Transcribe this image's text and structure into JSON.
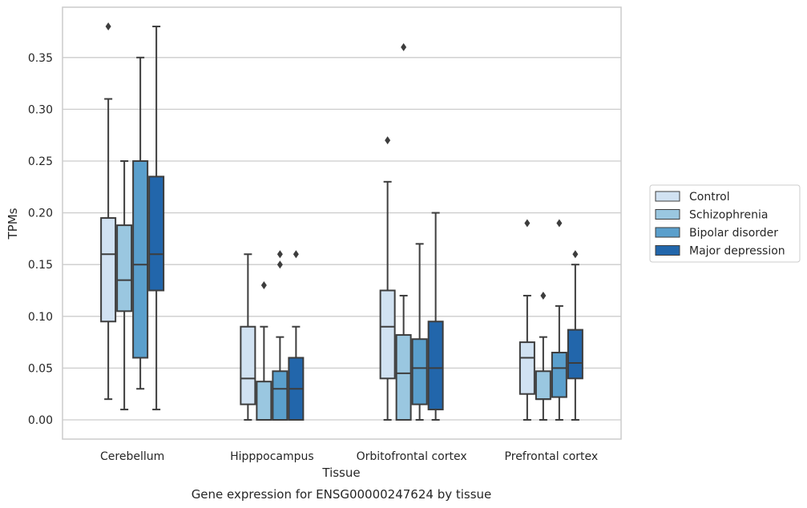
{
  "chart_data": {
    "type": "box",
    "xlabel": "Tissue",
    "ylabel": "TPMs",
    "caption": "Gene expression for ENSG00000247624 by tissue",
    "ylim": [
      -0.018,
      0.398
    ],
    "yticks": [
      "0.00",
      "0.05",
      "0.10",
      "0.15",
      "0.20",
      "0.25",
      "0.30",
      "0.35"
    ],
    "grid": true,
    "legend_position": "right",
    "categories": [
      "Cerebellum",
      "Hipppocampus",
      "Orbitofrontal cortex",
      "Prefrontal cortex"
    ],
    "series": [
      {
        "name": "Control",
        "color": "#d1e2f2",
        "boxes": [
          {
            "min": 0.02,
            "q1": 0.095,
            "median": 0.16,
            "q3": 0.195,
            "max": 0.31,
            "outliers": [
              0.38
            ]
          },
          {
            "min": 0.0,
            "q1": 0.015,
            "median": 0.04,
            "q3": 0.09,
            "max": 0.16,
            "outliers": []
          },
          {
            "min": 0.0,
            "q1": 0.04,
            "median": 0.09,
            "q3": 0.125,
            "max": 0.23,
            "outliers": [
              0.27
            ]
          },
          {
            "min": 0.0,
            "q1": 0.025,
            "median": 0.06,
            "q3": 0.075,
            "max": 0.12,
            "outliers": [
              0.19
            ]
          }
        ]
      },
      {
        "name": "Schizophrenia",
        "color": "#9ac7e0",
        "boxes": [
          {
            "min": 0.01,
            "q1": 0.105,
            "median": 0.135,
            "q3": 0.188,
            "max": 0.25,
            "outliers": []
          },
          {
            "min": 0.0,
            "q1": 0.0,
            "median": 0.0,
            "q3": 0.037,
            "max": 0.09,
            "outliers": [
              0.13
            ]
          },
          {
            "min": 0.0,
            "q1": 0.0,
            "median": 0.045,
            "q3": 0.082,
            "max": 0.12,
            "outliers": [
              0.36
            ]
          },
          {
            "min": 0.0,
            "q1": 0.02,
            "median": 0.02,
            "q3": 0.047,
            "max": 0.08,
            "outliers": [
              0.12
            ]
          }
        ]
      },
      {
        "name": "Bipolar disorder",
        "color": "#5a9fcc",
        "boxes": [
          {
            "min": 0.03,
            "q1": 0.06,
            "median": 0.15,
            "q3": 0.25,
            "max": 0.35,
            "outliers": []
          },
          {
            "min": 0.0,
            "q1": 0.0,
            "median": 0.03,
            "q3": 0.047,
            "max": 0.08,
            "outliers": [
              0.15,
              0.16
            ]
          },
          {
            "min": 0.0,
            "q1": 0.015,
            "median": 0.05,
            "q3": 0.078,
            "max": 0.17,
            "outliers": []
          },
          {
            "min": 0.0,
            "q1": 0.022,
            "median": 0.05,
            "q3": 0.065,
            "max": 0.11,
            "outliers": [
              0.19
            ]
          }
        ]
      },
      {
        "name": "Major depression",
        "color": "#2266ab",
        "boxes": [
          {
            "min": 0.01,
            "q1": 0.125,
            "median": 0.16,
            "q3": 0.235,
            "max": 0.38,
            "outliers": []
          },
          {
            "min": 0.0,
            "q1": 0.0,
            "median": 0.03,
            "q3": 0.06,
            "max": 0.09,
            "outliers": [
              0.16
            ]
          },
          {
            "min": 0.0,
            "q1": 0.01,
            "median": 0.05,
            "q3": 0.095,
            "max": 0.2,
            "outliers": []
          },
          {
            "min": 0.0,
            "q1": 0.04,
            "median": 0.055,
            "q3": 0.087,
            "max": 0.15,
            "outliers": [
              0.16
            ]
          }
        ]
      }
    ]
  }
}
